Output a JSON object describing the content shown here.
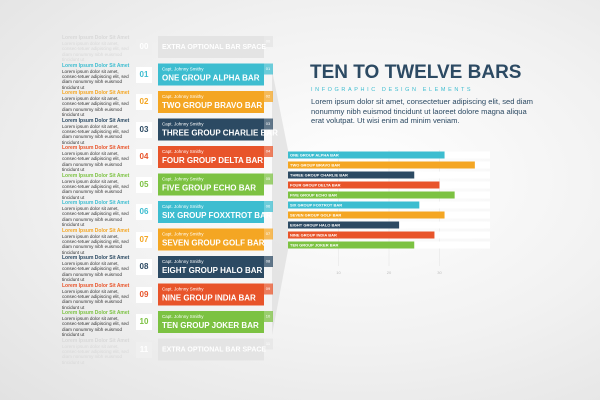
{
  "header": {
    "title": "TEN TO TWELVE BARS",
    "subtitle": "INFOGRAPHIC DESIGN ELEMENTS",
    "body": "Lorem ipsum dolor sit amet, consectetuer adipiscing elit, sed diam nonummy nibh euismod tincidunt ut laoreet dolore magna aliqua erat volutpat. Ut wisi enim ad minim veniam."
  },
  "rows": [
    {
      "heading": "Lorem Ipsum Dolor Sit Amet",
      "body": "Lorem ipsum dolor sit amet, consec-tetuer adipiscing elit, sed diam nonummy nibh euismod tincidunt ut",
      "number": "00",
      "caption": "",
      "label": "EXTRA OPTIONAL BAR SPACE",
      "color": "#e4e4e4",
      "faded": true
    },
    {
      "heading": "Lorem Ipsum Dolor Sit Amet",
      "body": "Lorem ipsum dolor sit amet, consec-tetuer adipiscing elit, sed diam nonummy nibh euismod tincidunt ut",
      "number": "01",
      "caption": "Capt. Johnny Smithy",
      "label": "ONE GROUP ALPHA BAR",
      "color": "#3dbdd0"
    },
    {
      "heading": "Lorem Ipsum Dolor Sit Amet",
      "body": "Lorem ipsum dolor sit amet, consec-tetuer adipiscing elit, sed diam nonummy nibh euismod tincidunt ut",
      "number": "02",
      "caption": "Capt. Johnny Smithy",
      "label": "TWO GROUP BRAVO BAR",
      "color": "#f4a623"
    },
    {
      "heading": "Lorem Ipsum Dolor Sit Amet",
      "body": "Lorem ipsum dolor sit amet, consec-tetuer adipiscing elit, sed diam nonummy nibh euismod tincidunt ut",
      "number": "03",
      "caption": "Capt. Johnny Smithy",
      "label": "THREE GROUP CHARLIE BAR",
      "color": "#2c4a63"
    },
    {
      "heading": "Lorem Ipsum Dolor Sit Amet",
      "body": "Lorem ipsum dolor sit amet, consec-tetuer adipiscing elit, sed diam nonummy nibh euismod tincidunt ut",
      "number": "04",
      "caption": "Capt. Johnny Smithy",
      "label": "FOUR GROUP DELTA BAR",
      "color": "#e8542a"
    },
    {
      "heading": "Lorem Ipsum Dolor Sit Amet",
      "body": "Lorem ipsum dolor sit amet, consec-tetuer adipiscing elit, sed diam nonummy nibh euismod tincidunt ut",
      "number": "05",
      "caption": "Capt. Johnny Smithy",
      "label": "FIVE GROUP ECHO BAR",
      "color": "#7cc242"
    },
    {
      "heading": "Lorem Ipsum Dolor Sit Amet",
      "body": "Lorem ipsum dolor sit amet, consec-tetuer adipiscing elit, sed diam nonummy nibh euismod tincidunt ut",
      "number": "06",
      "caption": "Capt. Johnny Smithy",
      "label": "SIX GROUP FOXXTROT BAR",
      "color": "#3dbdd0"
    },
    {
      "heading": "Lorem Ipsum Dolor Sit Amet",
      "body": "Lorem ipsum dolor sit amet, consec-tetuer adipiscing elit, sed diam nonummy nibh euismod tincidunt ut",
      "number": "07",
      "caption": "Capt. Johnny Smithy",
      "label": "SEVEN GROUP GOLF BAR",
      "color": "#f4a623"
    },
    {
      "heading": "Lorem Ipsum Dolor Sit Amet",
      "body": "Lorem ipsum dolor sit amet, consec-tetuer adipiscing elit, sed diam nonummy nibh euismod tincidunt ut",
      "number": "08",
      "caption": "Capt. Johnny Smithy",
      "label": "EIGHT GROUP HALO BAR",
      "color": "#2c4a63"
    },
    {
      "heading": "Lorem Ipsum Dolor Sit Amet",
      "body": "Lorem ipsum dolor sit amet, consec-tetuer adipiscing elit, sed diam nonummy nibh euismod tincidunt ut",
      "number": "09",
      "caption": "Capt. Johnny Smithy",
      "label": "NINE GROUP INDIA BAR",
      "color": "#e8542a"
    },
    {
      "heading": "Lorem Ipsum Dolor Sit Amet",
      "body": "Lorem ipsum dolor sit amet, consec-tetuer adipiscing elit, sed diam nonummy nibh euismod tincidunt ut",
      "number": "10",
      "caption": "Capt. Johnny Smithy",
      "label": "TEN GROUP JOKER BAR",
      "color": "#7cc242"
    },
    {
      "heading": "Lorem Ipsum Dolor Sit Amet",
      "body": "Lorem ipsum dolor sit amet, consec-tetuer adipiscing elit, sed diam nonummy nibh euismod tincidunt ut",
      "number": "11",
      "caption": "",
      "label": "EXTRA OPTIONAL BAR SPACE",
      "color": "#e4e4e4",
      "faded": true
    }
  ],
  "chart_data": {
    "type": "hbar",
    "categories": [
      "ONE GROUP ALPHA BAR",
      "TWO GROUP BRAVO BAR",
      "THREE GROUP CHARLIE BAR",
      "FOUR GROUP DELTA BAR",
      "FIVE GROUP ECHO BAR",
      "SIX GROUP FOXTROT BAR",
      "SEVEN GROUP GOLF BAR",
      "EIGHT GROUP HALO BAR",
      "NINE GROUP INDIA BAR",
      "TEN GROUP JOKER BAR"
    ],
    "values": [
      31,
      37,
      25,
      30,
      33,
      26,
      31,
      22,
      29,
      25
    ],
    "colors": [
      "#3dbdd0",
      "#f4a623",
      "#2c4a63",
      "#e8542a",
      "#7cc242",
      "#3dbdd0",
      "#f4a623",
      "#2c4a63",
      "#e8542a",
      "#7cc242"
    ],
    "xlim": [
      0,
      40
    ],
    "xticks": [
      10,
      20,
      30
    ],
    "grid": true
  }
}
